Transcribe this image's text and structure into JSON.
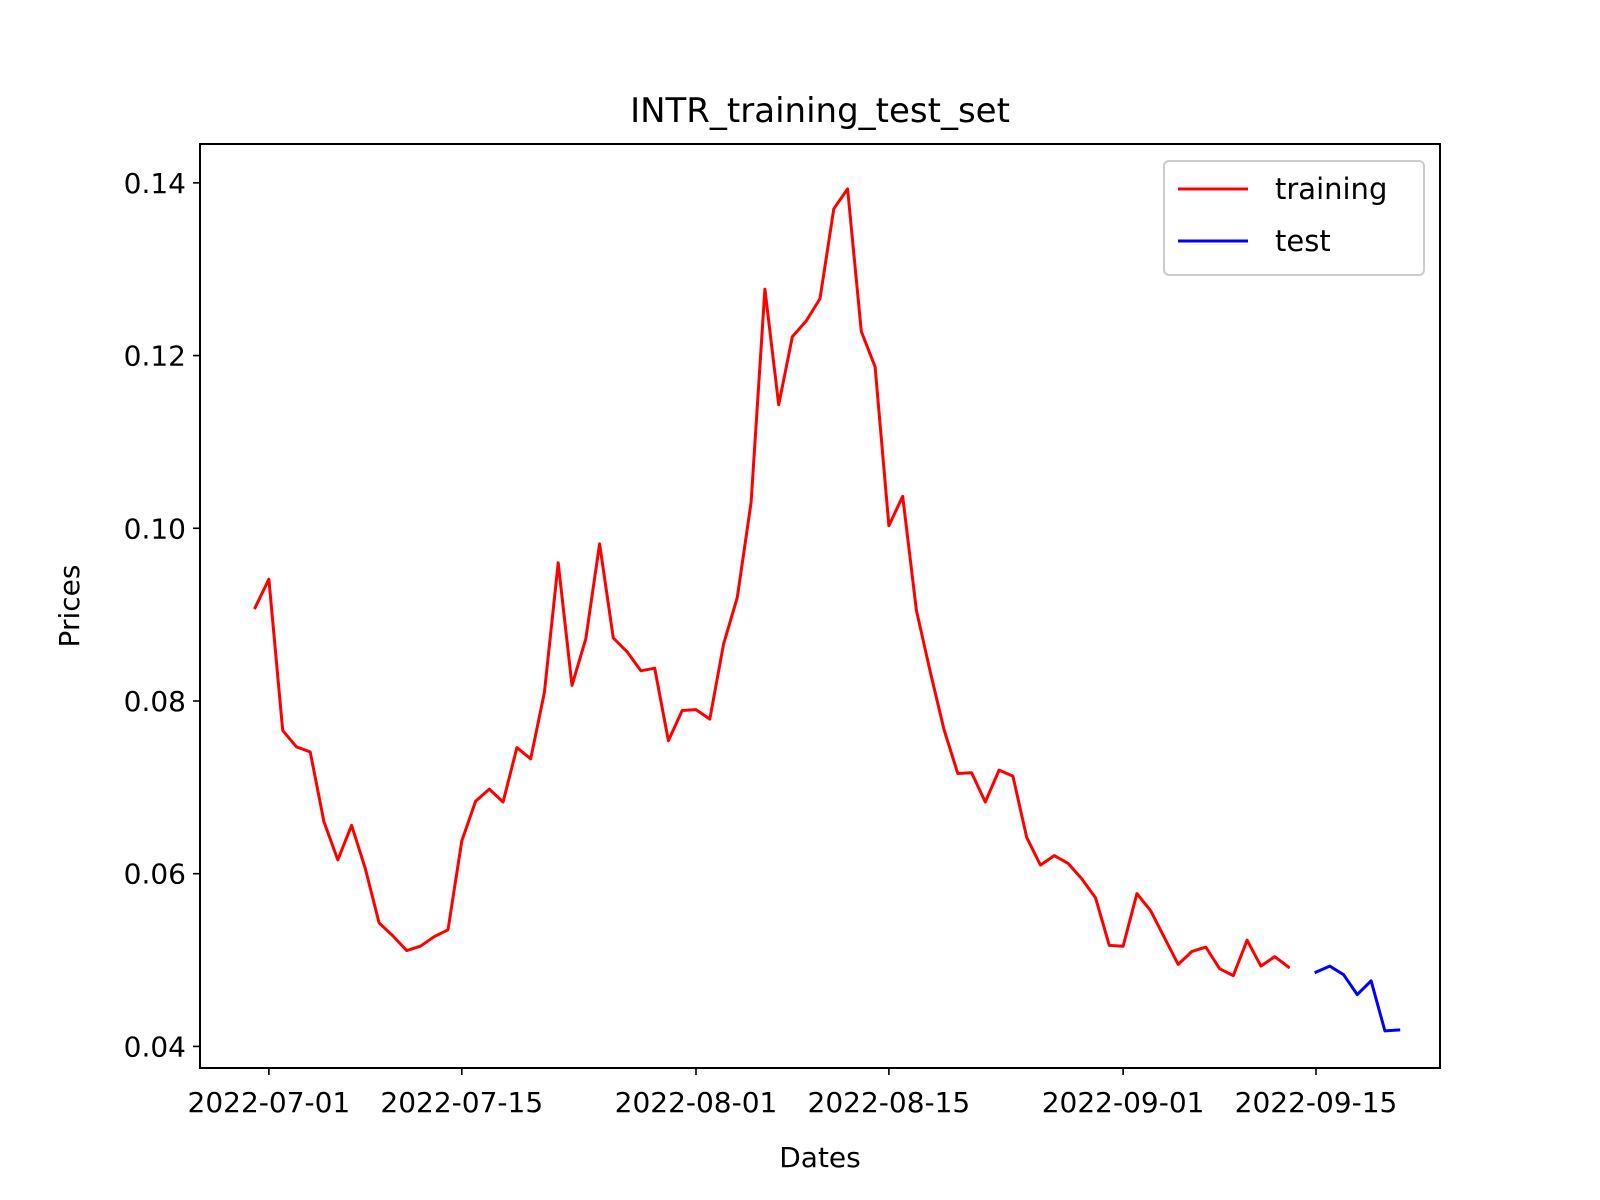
{
  "chart_data": {
    "type": "line",
    "title": "INTR_training_test_set",
    "xlabel": "Dates",
    "ylabel": "Prices",
    "xlim": [
      "2022-06-26",
      "2022-09-24"
    ],
    "ylim": [
      0.0375,
      0.1445
    ],
    "x_ticks": [
      "2022-07-01",
      "2022-07-15",
      "2022-08-01",
      "2022-08-15",
      "2022-09-01",
      "2022-09-15"
    ],
    "y_ticks": [
      "0.04",
      "0.06",
      "0.08",
      "0.10",
      "0.12",
      "0.14"
    ],
    "grid": false,
    "legend_position": "upper right",
    "series": [
      {
        "name": "training",
        "color": "#ff0000",
        "points": [
          [
            "2022-06-30",
            0.0908
          ],
          [
            "2022-07-01",
            0.0941
          ],
          [
            "2022-07-02",
            0.0766
          ],
          [
            "2022-07-03",
            0.0747
          ],
          [
            "2022-07-04",
            0.0741
          ],
          [
            "2022-07-05",
            0.066
          ],
          [
            "2022-07-06",
            0.0616
          ],
          [
            "2022-07-07",
            0.0656
          ],
          [
            "2022-07-08",
            0.0606
          ],
          [
            "2022-07-09",
            0.0543
          ],
          [
            "2022-07-10",
            0.0528
          ],
          [
            "2022-07-11",
            0.0511
          ],
          [
            "2022-07-12",
            0.0516
          ],
          [
            "2022-07-13",
            0.0527
          ],
          [
            "2022-07-14",
            0.0535
          ],
          [
            "2022-07-15",
            0.0638
          ],
          [
            "2022-07-16",
            0.0684
          ],
          [
            "2022-07-17",
            0.0698
          ],
          [
            "2022-07-18",
            0.0683
          ],
          [
            "2022-07-19",
            0.0746
          ],
          [
            "2022-07-20",
            0.0733
          ],
          [
            "2022-07-21",
            0.081
          ],
          [
            "2022-07-22",
            0.096
          ],
          [
            "2022-07-23",
            0.0818
          ],
          [
            "2022-07-24",
            0.0872
          ],
          [
            "2022-07-25",
            0.0982
          ],
          [
            "2022-07-26",
            0.0873
          ],
          [
            "2022-07-27",
            0.0857
          ],
          [
            "2022-07-28",
            0.0835
          ],
          [
            "2022-07-29",
            0.0838
          ],
          [
            "2022-07-30",
            0.0754
          ],
          [
            "2022-07-31",
            0.0789
          ],
          [
            "2022-08-01",
            0.079
          ],
          [
            "2022-08-02",
            0.0779
          ],
          [
            "2022-08-03",
            0.0866
          ],
          [
            "2022-08-04",
            0.092
          ],
          [
            "2022-08-05",
            0.103
          ],
          [
            "2022-08-06",
            0.1277
          ],
          [
            "2022-08-07",
            0.1143
          ],
          [
            "2022-08-08",
            0.1222
          ],
          [
            "2022-08-09",
            0.124
          ],
          [
            "2022-08-10",
            0.1266
          ],
          [
            "2022-08-11",
            0.137
          ],
          [
            "2022-08-12",
            0.1393
          ],
          [
            "2022-08-13",
            0.1228
          ],
          [
            "2022-08-14",
            0.1187
          ],
          [
            "2022-08-15",
            0.1003
          ],
          [
            "2022-08-16",
            0.1037
          ],
          [
            "2022-08-17",
            0.0905
          ],
          [
            "2022-08-18",
            0.0834
          ],
          [
            "2022-08-19",
            0.0767
          ],
          [
            "2022-08-20",
            0.0716
          ],
          [
            "2022-08-21",
            0.0717
          ],
          [
            "2022-08-22",
            0.0683
          ],
          [
            "2022-08-23",
            0.072
          ],
          [
            "2022-08-24",
            0.0713
          ],
          [
            "2022-08-25",
            0.0642
          ],
          [
            "2022-08-26",
            0.061
          ],
          [
            "2022-08-27",
            0.0621
          ],
          [
            "2022-08-28",
            0.0612
          ],
          [
            "2022-08-29",
            0.0594
          ],
          [
            "2022-08-30",
            0.0572
          ],
          [
            "2022-08-31",
            0.0517
          ],
          [
            "2022-09-01",
            0.0516
          ],
          [
            "2022-09-02",
            0.0577
          ],
          [
            "2022-09-03",
            0.0557
          ],
          [
            "2022-09-04",
            0.0526
          ],
          [
            "2022-09-05",
            0.0495
          ],
          [
            "2022-09-06",
            0.051
          ],
          [
            "2022-09-07",
            0.0515
          ],
          [
            "2022-09-08",
            0.049
          ],
          [
            "2022-09-09",
            0.0482
          ],
          [
            "2022-09-10",
            0.0523
          ],
          [
            "2022-09-11",
            0.0493
          ],
          [
            "2022-09-12",
            0.0504
          ],
          [
            "2022-09-13",
            0.0492
          ]
        ]
      },
      {
        "name": "test",
        "color": "#0000ff",
        "points": [
          [
            "2022-09-15",
            0.0486
          ],
          [
            "2022-09-16",
            0.0493
          ],
          [
            "2022-09-17",
            0.0483
          ],
          [
            "2022-09-18",
            0.046
          ],
          [
            "2022-09-19",
            0.0476
          ],
          [
            "2022-09-20",
            0.0418
          ],
          [
            "2022-09-21",
            0.0419
          ]
        ]
      }
    ]
  }
}
